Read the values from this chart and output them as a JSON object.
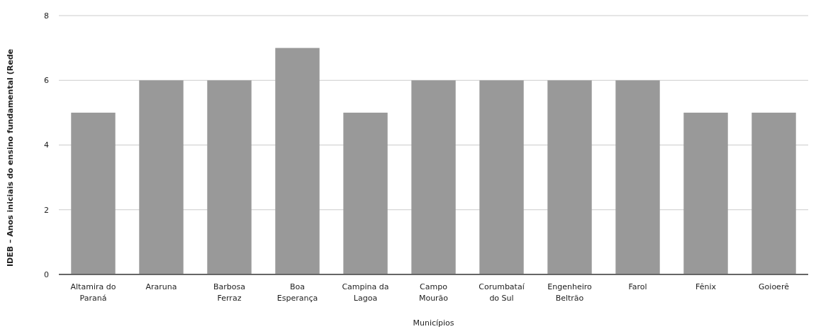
{
  "chart_data": {
    "type": "bar",
    "xlabel": "Municípios",
    "ylabel": "IDEB – Anos iniciais do ensino fundamental (Rede",
    "categories": [
      "Altamira do Paraná",
      "Araruna",
      "Barbosa Ferraz",
      "Boa Esperança",
      "Campina da Lagoa",
      "Campo Mourão",
      "Corumbataí do Sul",
      "Engenheiro Beltrão",
      "Farol",
      "Fênix",
      "Goioerê"
    ],
    "values": [
      5,
      6,
      6,
      7,
      5,
      6,
      6,
      6,
      6,
      5,
      5
    ],
    "color": "#999999",
    "ylim": [
      0,
      8
    ],
    "yticks": [
      0,
      2,
      4,
      6,
      8
    ],
    "grid": "y"
  }
}
